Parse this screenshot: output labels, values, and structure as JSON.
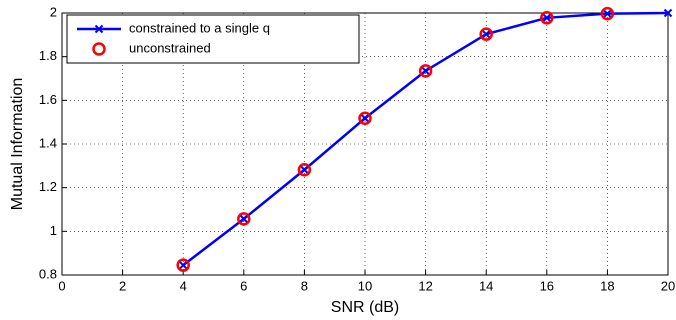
{
  "chart_data": {
    "type": "line",
    "x_label": "SNR (dB)",
    "y_label": "Mutual Information",
    "x": [
      4,
      6,
      8,
      10,
      12,
      14,
      16,
      18,
      20
    ],
    "series": [
      {
        "name": "constrained to a single q",
        "color": "#0000ff",
        "marker": "x",
        "line": true,
        "values": [
          0.845,
          1.057,
          1.282,
          1.518,
          1.735,
          1.903,
          1.978,
          1.997,
          2.0
        ]
      },
      {
        "name": "unconstrained",
        "color": "#ff0000",
        "marker": "o",
        "line": false,
        "values": [
          0.845,
          1.057,
          1.282,
          1.518,
          1.735,
          1.903,
          1.978,
          1.997,
          null
        ]
      }
    ],
    "xlim": [
      0,
      20
    ],
    "xticks": [
      0,
      2,
      4,
      6,
      8,
      10,
      12,
      14,
      16,
      18,
      20
    ],
    "ylim": [
      0.8,
      2
    ],
    "yticks": [
      0.8,
      1,
      1.2,
      1.4,
      1.6,
      1.8,
      2
    ],
    "grid": true,
    "legend": "upper-left"
  }
}
